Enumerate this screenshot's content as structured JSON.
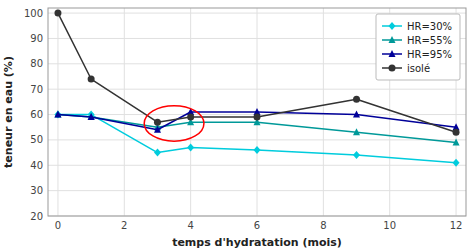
{
  "chart_data": {
    "type": "line",
    "xlabel": "temps d'hydratation (mois)",
    "ylabel": "teneur en eau (%)",
    "x": [
      0,
      1,
      3,
      4,
      6,
      9,
      12
    ],
    "xlim": [
      -0.3,
      12.3
    ],
    "xticks": [
      0,
      2,
      4,
      6,
      8,
      10,
      12
    ],
    "ylim": [
      20,
      102
    ],
    "yticks": [
      20,
      30,
      40,
      50,
      60,
      70,
      80,
      90,
      100
    ],
    "grid": true,
    "legend": "upper right",
    "series": [
      {
        "name": "HR=30%",
        "color": "#00CCDD",
        "marker": "diamond",
        "values": [
          60,
          60,
          45,
          47,
          46,
          44,
          41
        ]
      },
      {
        "name": "HR=55%",
        "color": "#009999",
        "marker": "triangle",
        "values": [
          60,
          59,
          55,
          57,
          57,
          53,
          49
        ]
      },
      {
        "name": "HR=95%",
        "color": "#000099",
        "marker": "triangle",
        "values": [
          60,
          59,
          54,
          61,
          61,
          60,
          55
        ]
      },
      {
        "name": "isolé",
        "color": "#333333",
        "marker": "circle",
        "values": [
          100,
          74,
          57,
          59,
          59,
          66,
          53
        ]
      }
    ],
    "annotations": [
      {
        "shape": "ellipse",
        "x": 3.5,
        "y": 56.5,
        "rx": 0.9,
        "ry": 7.0,
        "color": "red"
      }
    ]
  }
}
